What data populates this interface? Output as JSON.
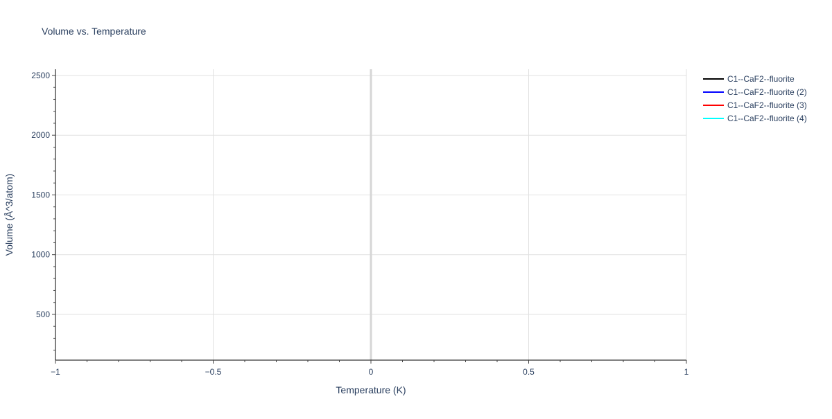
{
  "chart_data": {
    "type": "line",
    "title": "Volume vs. Temperature",
    "xlabel": "Temperature (K)",
    "ylabel": "Volume (Å^3/atom)",
    "xlim": [
      -1,
      1
    ],
    "ylim": [
      117,
      2552
    ],
    "xticks": [
      -1,
      -0.5,
      0,
      0.5,
      1
    ],
    "xtick_labels": [
      "−1",
      "−0.5",
      "0",
      "0.5",
      "1"
    ],
    "yticks": [
      500,
      1000,
      1500,
      2000,
      2500
    ],
    "ytick_labels": [
      "500",
      "1000",
      "1500",
      "2000",
      "2500"
    ],
    "grid": true,
    "legend_placement": "top-right",
    "series": [
      {
        "name": "C1--CaF2--fluorite",
        "color": "#000000",
        "x": [],
        "y": []
      },
      {
        "name": "C1--CaF2--fluorite (2)",
        "color": "#0000ff",
        "x": [],
        "y": []
      },
      {
        "name": "C1--CaF2--fluorite (3)",
        "color": "#ff0000",
        "x": [],
        "y": []
      },
      {
        "name": "C1--CaF2--fluorite (4)",
        "color": "#00ffff",
        "x": [],
        "y": []
      }
    ]
  }
}
